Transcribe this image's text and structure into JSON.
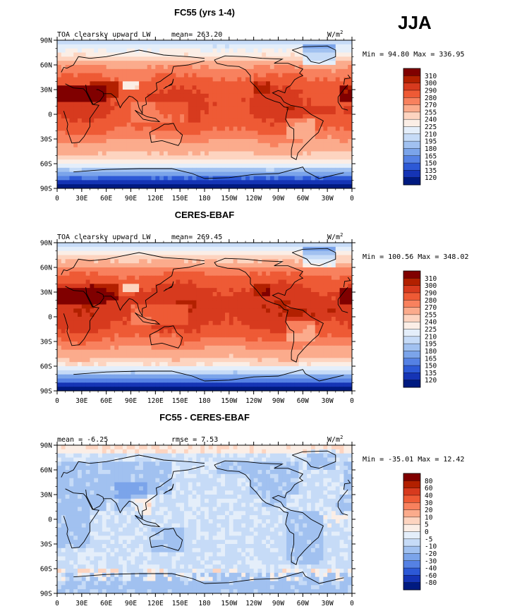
{
  "season": "JJA",
  "chart_data": [
    {
      "type": "heatmap",
      "title": "FC55 (yrs 1-4)",
      "variable": "TOA clearsky upward LW",
      "units": "W/m",
      "units_superscript": "2",
      "mean_label": "mean=",
      "mean_value": "263.20",
      "min_label": "Min =",
      "min_value": "94.80",
      "max_label": "Max =",
      "max_value": "336.95",
      "x_ticks": [
        "0",
        "30E",
        "60E",
        "90E",
        "120E",
        "150E",
        "180",
        "150W",
        "120W",
        "90W",
        "60W",
        "30W",
        "0"
      ],
      "y_ticks": [
        "90N",
        "60N",
        "30N",
        "0",
        "30S",
        "60S",
        "90S"
      ],
      "colorbar_levels": [
        "310",
        "300",
        "290",
        "280",
        "270",
        "255",
        "240",
        "225",
        "210",
        "195",
        "180",
        "165",
        "150",
        "135",
        "120"
      ],
      "colorbar_colors": [
        "#800000",
        "#b22000",
        "#d73a1e",
        "#ee5a35",
        "#f8815e",
        "#fbab8c",
        "#fdd4c0",
        "#fbeee6",
        "#e4eefa",
        "#c6dbf7",
        "#a1c1f0",
        "#7ba4ea",
        "#5581e4",
        "#2d59d6",
        "#1534b5",
        "#001a80"
      ]
    },
    {
      "type": "heatmap",
      "title": "CERES-EBAF",
      "variable": "TOA clearsky upward LW",
      "units": "W/m",
      "units_superscript": "2",
      "mean_label": "mean=",
      "mean_value": "269.45",
      "min_label": "Min =",
      "min_value": "100.56",
      "max_label": "Max =",
      "max_value": "348.02",
      "x_ticks": [
        "0",
        "30E",
        "60E",
        "90E",
        "120E",
        "150E",
        "180",
        "150W",
        "120W",
        "90W",
        "60W",
        "30W",
        "0"
      ],
      "y_ticks": [
        "90N",
        "60N",
        "30N",
        "0",
        "30S",
        "60S",
        "90S"
      ],
      "colorbar_levels": [
        "310",
        "300",
        "290",
        "280",
        "270",
        "255",
        "240",
        "225",
        "210",
        "195",
        "180",
        "165",
        "150",
        "135",
        "120"
      ],
      "colorbar_colors": [
        "#800000",
        "#b22000",
        "#d73a1e",
        "#ee5a35",
        "#f8815e",
        "#fbab8c",
        "#fdd4c0",
        "#fbeee6",
        "#e4eefa",
        "#c6dbf7",
        "#a1c1f0",
        "#7ba4ea",
        "#5581e4",
        "#2d59d6",
        "#1534b5",
        "#001a80"
      ]
    },
    {
      "type": "heatmap",
      "title": "FC55 - CERES-EBAF",
      "units": "W/m",
      "units_superscript": "2",
      "mean_label": "mean =",
      "mean_value": "-6.25",
      "rmse_label": "rmse =",
      "rmse_value": "7.53",
      "min_label": "Min =",
      "min_value": "-35.01",
      "max_label": "Max =",
      "max_value": "12.42",
      "x_ticks": [
        "0",
        "30E",
        "60E",
        "90E",
        "120E",
        "150E",
        "180",
        "150W",
        "120W",
        "90W",
        "60W",
        "30W",
        "0"
      ],
      "y_ticks": [
        "90N",
        "60N",
        "30N",
        "0",
        "30S",
        "60S",
        "90S"
      ],
      "colorbar_levels": [
        "80",
        "60",
        "40",
        "30",
        "20",
        "10",
        "5",
        "0",
        "-5",
        "-10",
        "-20",
        "-30",
        "-40",
        "-60",
        "-80"
      ],
      "colorbar_colors": [
        "#800000",
        "#b22000",
        "#d73a1e",
        "#ee5a35",
        "#f8815e",
        "#fbab8c",
        "#fdd4c0",
        "#fbeee6",
        "#e4eefa",
        "#c6dbf7",
        "#a1c1f0",
        "#7ba4ea",
        "#5581e4",
        "#2d59d6",
        "#1534b5",
        "#001a80"
      ]
    }
  ]
}
